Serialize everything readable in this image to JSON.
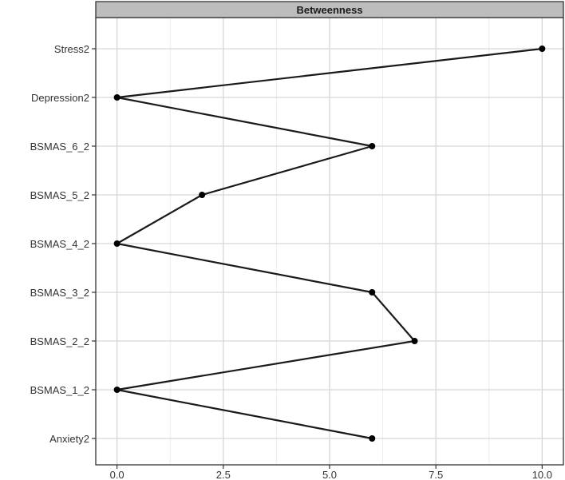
{
  "chart_data": {
    "type": "line",
    "strip_title": "Betweenness",
    "categories": [
      "Stress2",
      "Depression2",
      "BSMAS_6_2",
      "BSMAS_5_2",
      "BSMAS_4_2",
      "BSMAS_3_2",
      "BSMAS_2_2",
      "BSMAS_1_2",
      "Anxiety2"
    ],
    "values": [
      10,
      0,
      6,
      2,
      0,
      6,
      7,
      0,
      6
    ],
    "x_ticks": [
      0,
      2.5,
      5,
      7.5,
      10
    ],
    "x_tick_labels": [
      "0.0",
      "2.5",
      "5.0",
      "7.5",
      "10.0"
    ],
    "xlim": [
      -0.5,
      10.5
    ],
    "xlabel": "",
    "ylabel": "",
    "grid": true,
    "colors": {
      "line": "#1a1a1a",
      "point": "#000000",
      "grid_major": "#d6d6d6",
      "grid_minor": "#ececec",
      "strip_fill": "#bdbdbd",
      "border": "#333333"
    }
  }
}
